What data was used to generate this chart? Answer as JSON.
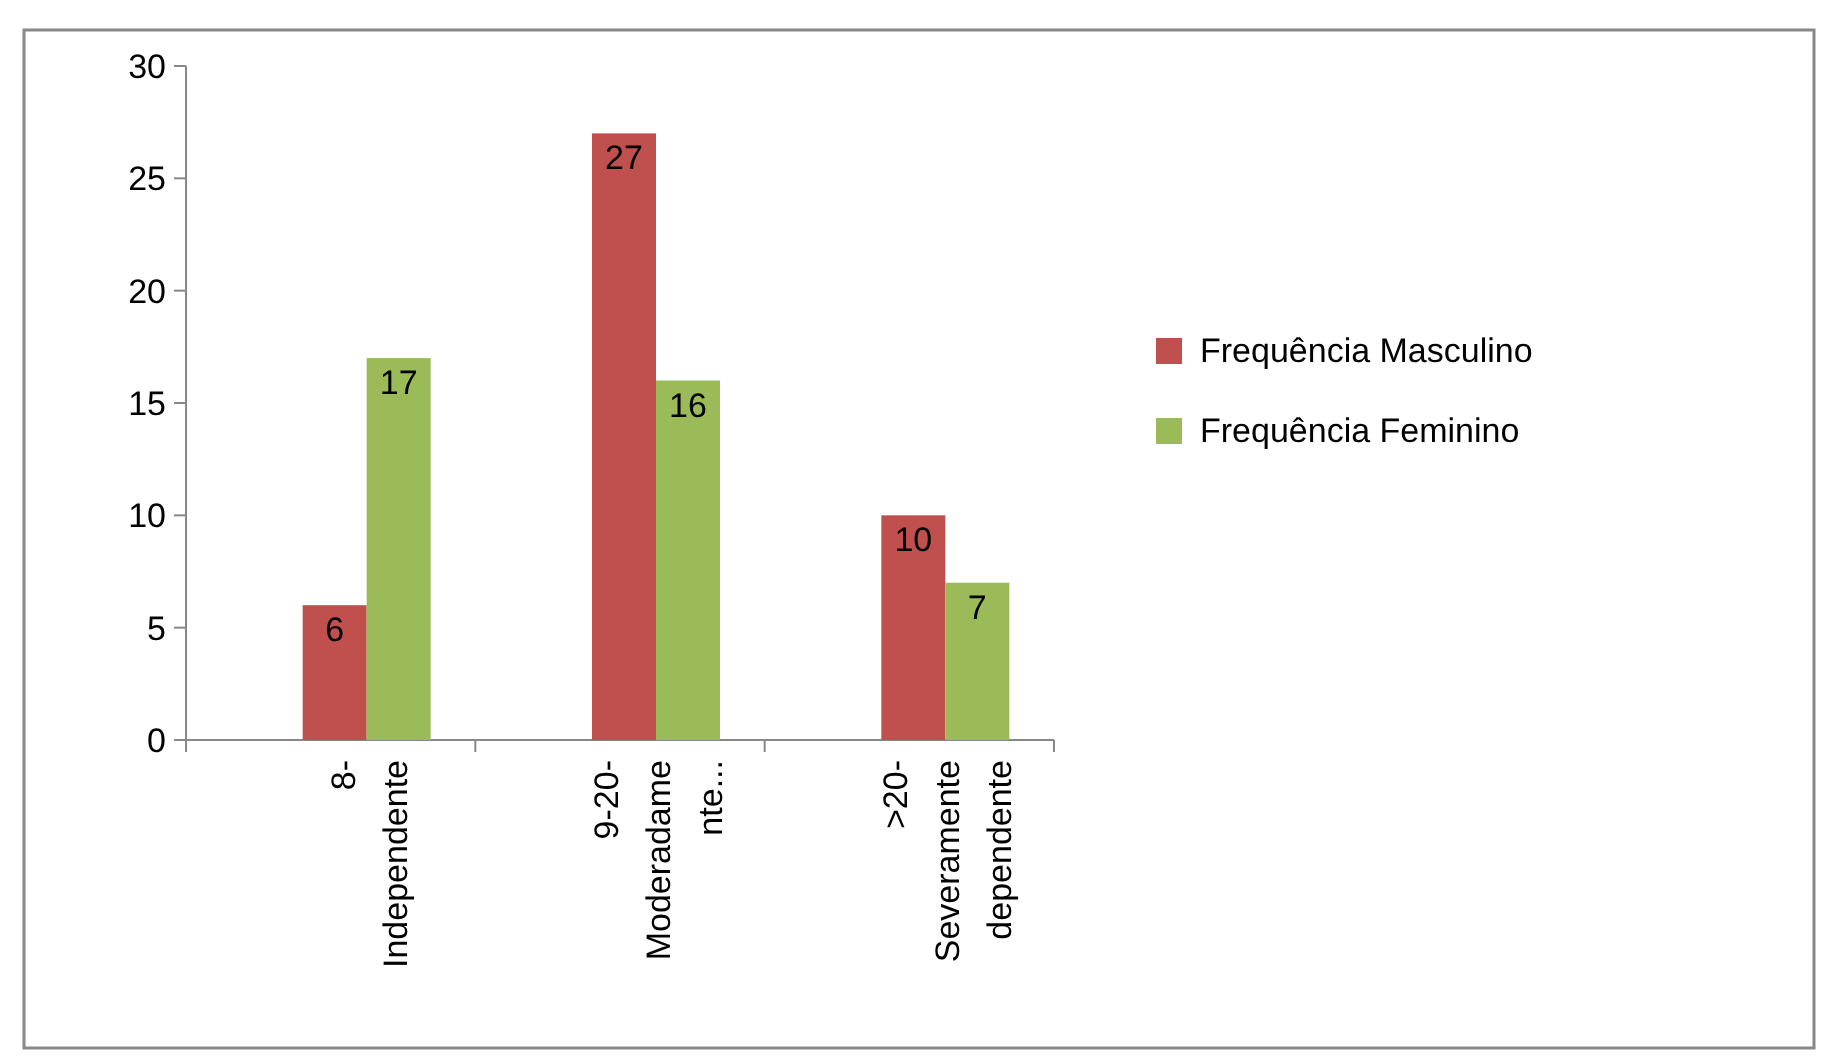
{
  "chart_data": {
    "type": "bar",
    "categories": [
      "8- Independente",
      "9-20- Moderadame nte...",
      ">20- Severamente dependente"
    ],
    "series": [
      {
        "name": "Frequência Masculino",
        "color": "#c0504d",
        "values": [
          6,
          27,
          10
        ]
      },
      {
        "name": "Frequência Feminino",
        "color": "#9bbb59",
        "values": [
          17,
          16,
          7
        ]
      }
    ],
    "ylim": [
      0,
      30
    ],
    "yticks": [
      0,
      5,
      10,
      15,
      20,
      25,
      30
    ],
    "grid": false,
    "legend": "right",
    "data_labels": true
  }
}
